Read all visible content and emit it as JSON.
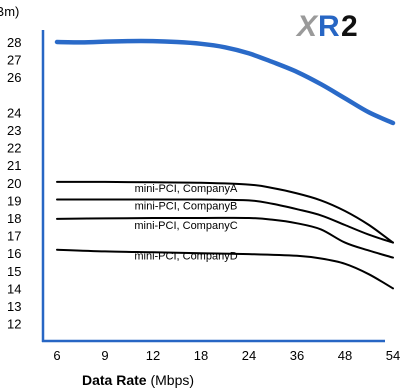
{
  "logo": {
    "part1": "X",
    "part2": "R",
    "part3": "2"
  },
  "chart_data": {
    "type": "line",
    "title": "",
    "ylabel": "(dBm)",
    "xlabel_bold": "Data Rate",
    "xlabel_rest": " (Mbps)",
    "categories": [
      "6",
      "9",
      "12",
      "18",
      "24",
      "36",
      "48",
      "54"
    ],
    "yticks": [
      12,
      13,
      14,
      15,
      16,
      17,
      18,
      19,
      20,
      21,
      22,
      23,
      24,
      26,
      27,
      28
    ],
    "ylim": [
      11,
      28.5
    ],
    "grid": false,
    "legend": "none",
    "series": [
      {
        "name": "",
        "color": "#2a6ac8",
        "points": [
          [
            0,
            28.0
          ],
          [
            0.5,
            27.98
          ],
          [
            1,
            28.02
          ],
          [
            1.5,
            28.05
          ],
          [
            2,
            28.05
          ],
          [
            2.5,
            28.0
          ],
          [
            3,
            27.9
          ],
          [
            3.5,
            27.7
          ],
          [
            4,
            27.35
          ],
          [
            4.5,
            26.85
          ],
          [
            5,
            26.3
          ],
          [
            5.5,
            25.6
          ],
          [
            6,
            24.8
          ],
          [
            6.5,
            24.0
          ],
          [
            7,
            23.4
          ]
        ]
      },
      {
        "name": "mini-PCI, CompanyA",
        "color": "#000000",
        "points": [
          [
            0,
            20.05
          ],
          [
            1,
            20.05
          ],
          [
            2,
            20.03
          ],
          [
            3,
            20.0
          ],
          [
            4,
            19.9
          ],
          [
            4.5,
            19.7
          ],
          [
            5,
            19.4
          ],
          [
            5.5,
            19.0
          ],
          [
            6,
            18.4
          ],
          [
            6.5,
            17.6
          ],
          [
            7,
            16.6
          ]
        ]
      },
      {
        "name": "mini-PCI, CompanyB",
        "color": "#000000",
        "points": [
          [
            0,
            19.05
          ],
          [
            1,
            19.05
          ],
          [
            2,
            19.05
          ],
          [
            3,
            19.05
          ],
          [
            4,
            19.0
          ],
          [
            4.5,
            18.8
          ],
          [
            5,
            18.5
          ],
          [
            5.5,
            18.15
          ],
          [
            6,
            17.6
          ],
          [
            6.5,
            17.05
          ],
          [
            7,
            16.6
          ]
        ]
      },
      {
        "name": "mini-PCI, CompanyC",
        "color": "#000000",
        "points": [
          [
            0,
            17.95
          ],
          [
            1,
            17.98
          ],
          [
            2,
            18.0
          ],
          [
            3,
            18.0
          ],
          [
            4,
            18.0
          ],
          [
            4.5,
            17.9
          ],
          [
            5,
            17.7
          ],
          [
            5.5,
            17.35
          ],
          [
            6,
            16.6
          ],
          [
            6.5,
            16.15
          ],
          [
            7,
            15.75
          ]
        ]
      },
      {
        "name": "mini-PCI, CompanyD",
        "color": "#000000",
        "points": [
          [
            0,
            16.2
          ],
          [
            1,
            16.1
          ],
          [
            2,
            16.05
          ],
          [
            3,
            16.0
          ],
          [
            4,
            15.95
          ],
          [
            5,
            15.85
          ],
          [
            5.5,
            15.7
          ],
          [
            6,
            15.4
          ],
          [
            6.5,
            14.8
          ],
          [
            7,
            14.0
          ]
        ]
      }
    ]
  }
}
